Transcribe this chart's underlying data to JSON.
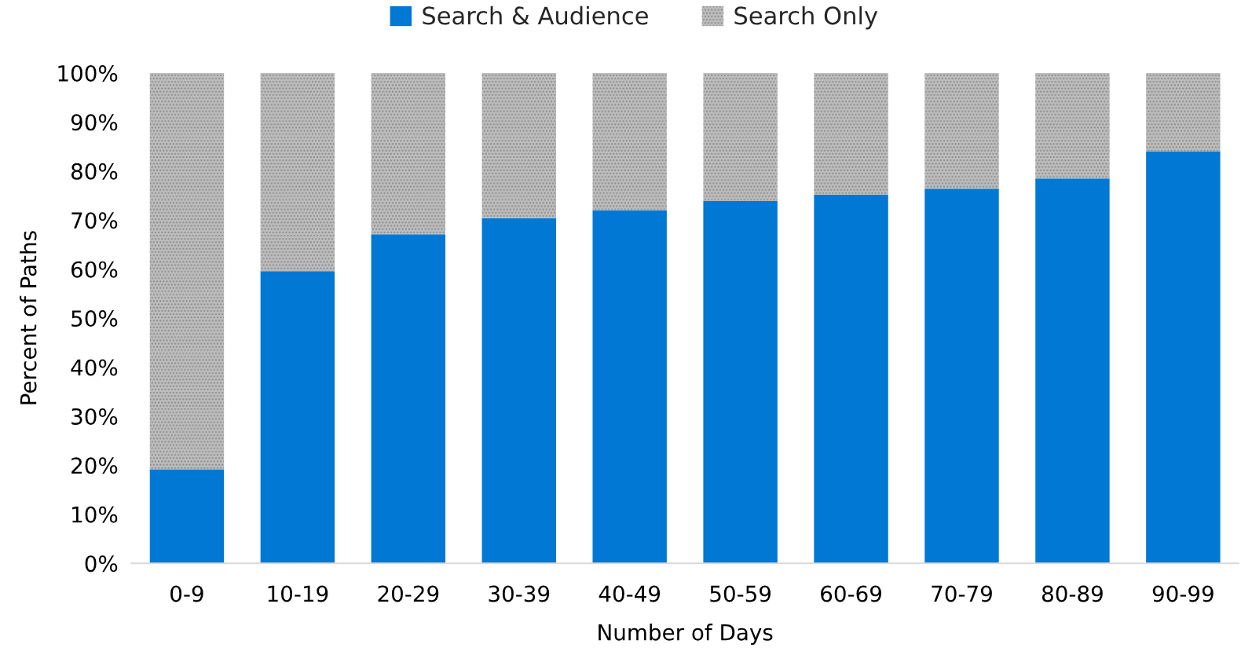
{
  "chart_data": {
    "type": "bar",
    "stacked": true,
    "xlabel": "Number of Days",
    "ylabel": "Percent of Paths",
    "categories": [
      "0-9",
      "10-19",
      "20-29",
      "30-39",
      "40-49",
      "50-59",
      "60-69",
      "70-79",
      "80-89",
      "90-99"
    ],
    "series": [
      {
        "name": "Search & Audience",
        "color": "#0078d4",
        "values": [
          19.2,
          59.6,
          67.1,
          70.4,
          72.0,
          73.9,
          75.2,
          76.4,
          78.5,
          84.0
        ]
      },
      {
        "name": "Search Only",
        "color": "#bdbdbd",
        "values": [
          80.8,
          40.4,
          32.9,
          29.6,
          28.0,
          26.1,
          24.8,
          23.6,
          21.5,
          16.0
        ]
      }
    ],
    "ylim": [
      0,
      100
    ],
    "yticks": [
      {
        "value": 0,
        "label": "0%"
      },
      {
        "value": 10,
        "label": "10%"
      },
      {
        "value": 20,
        "label": "20%"
      },
      {
        "value": 30,
        "label": "30%"
      },
      {
        "value": 40,
        "label": "40%"
      },
      {
        "value": 50,
        "label": "50%"
      },
      {
        "value": 60,
        "label": "60%"
      },
      {
        "value": 70,
        "label": "70%"
      },
      {
        "value": 80,
        "label": "80%"
      },
      {
        "value": 90,
        "label": "90%"
      },
      {
        "value": 100,
        "label": "100%"
      }
    ],
    "grid": false,
    "legend": "top"
  }
}
